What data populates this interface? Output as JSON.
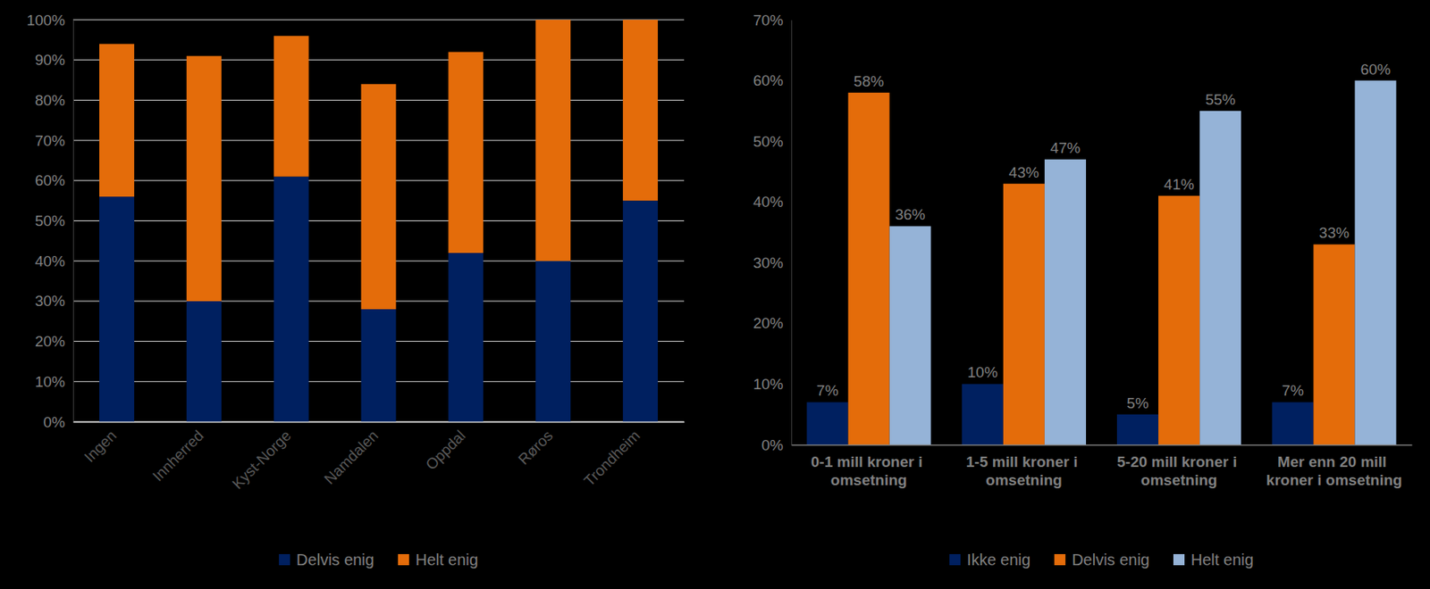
{
  "chart_data": [
    {
      "type": "bar",
      "stacked": true,
      "categories": [
        "Ingen",
        "Innherred",
        "Kyst-Norge",
        "Namdalen",
        "Oppdal",
        "Røros",
        "Trondheim"
      ],
      "series": [
        {
          "name": "Delvis enig",
          "color": "#002060",
          "values": [
            56,
            30,
            61,
            28,
            42,
            40,
            55
          ]
        },
        {
          "name": "Helt enig",
          "color": "#E46C0A",
          "values": [
            38,
            61,
            35,
            56,
            50,
            60,
            45
          ]
        }
      ],
      "ylim": [
        0,
        100
      ],
      "yticks": [
        {
          "value": 0,
          "label": "0%"
        },
        {
          "value": 10,
          "label": "10%"
        },
        {
          "value": 20,
          "label": "20%"
        },
        {
          "value": 30,
          "label": "30%"
        },
        {
          "value": 40,
          "label": "40%"
        },
        {
          "value": 50,
          "label": "50%"
        },
        {
          "value": 60,
          "label": "60%"
        },
        {
          "value": 70,
          "label": "70%"
        },
        {
          "value": 80,
          "label": "80%"
        },
        {
          "value": 90,
          "label": "90%"
        },
        {
          "value": 100,
          "label": "100%"
        }
      ],
      "grid": true,
      "legend": "bottom"
    },
    {
      "type": "bar",
      "categories": [
        "0-1 mill kroner i omsetning",
        "1-5 mill kroner i omsetning",
        "5-20 mill kroner i omsetning",
        "Mer enn 20 mill kroner i omsetning"
      ],
      "series": [
        {
          "name": "Ikke enig",
          "color": "#002060",
          "values": [
            7,
            10,
            5,
            7
          ],
          "value_labels": [
            "7%",
            "10%",
            "5%",
            "7%"
          ]
        },
        {
          "name": "Delvis enig",
          "color": "#E46C0A",
          "values": [
            58,
            43,
            41,
            33
          ],
          "value_labels": [
            "58%",
            "43%",
            "41%",
            "33%"
          ]
        },
        {
          "name": "Helt enig",
          "color": "#95B3D7",
          "values": [
            36,
            47,
            55,
            60
          ],
          "value_labels": [
            "36%",
            "47%",
            "55%",
            "60%"
          ]
        }
      ],
      "ylim": [
        0,
        70
      ],
      "yticks": [
        {
          "value": 0,
          "label": "0%"
        },
        {
          "value": 10,
          "label": "10%"
        },
        {
          "value": 20,
          "label": "20%"
        },
        {
          "value": 30,
          "label": "30%"
        },
        {
          "value": 40,
          "label": "40%"
        },
        {
          "value": 50,
          "label": "50%"
        },
        {
          "value": 60,
          "label": "60%"
        },
        {
          "value": 70,
          "label": "70%"
        }
      ],
      "grid": false,
      "data_labels": true,
      "legend": "bottom"
    }
  ]
}
